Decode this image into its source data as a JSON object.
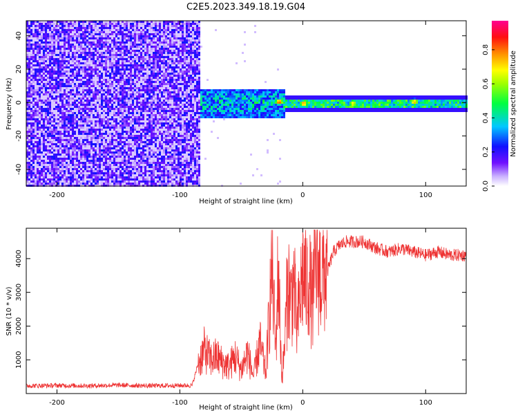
{
  "figure": {
    "title": "C2E5.2023.349.18.19.G04"
  },
  "chart_data": [
    {
      "type": "heatmap",
      "xlabel": "Height of straight line (km)",
      "ylabel": "Frequency (Hz)",
      "xlim": [
        -225,
        133
      ],
      "ylim": [
        -50,
        49
      ],
      "xticks": [
        -200,
        -100,
        0,
        100
      ],
      "yticks": [
        -40,
        -20,
        0,
        20,
        40
      ],
      "grid": false,
      "colorbar": {
        "label": "Normalized spectral amplitude",
        "range": [
          0.0,
          0.97
        ],
        "ticks": [
          "0.0",
          "0.2",
          "0.4",
          "0.6",
          "0.8"
        ],
        "colormap": "rainbow (white→purple→blue→cyan→green→yellow→orange→red→magenta)"
      },
      "regions": [
        {
          "x_range": [
            -225,
            -85
          ],
          "description_level": "broadband noise",
          "amplitude": [
            0.05,
            0.25
          ],
          "freq_range": [
            -50,
            49
          ]
        },
        {
          "x_range": [
            -85,
            -15
          ],
          "freq_center": 0,
          "freq_halfwidth": 9,
          "amplitude": [
            0.2,
            0.55
          ]
        },
        {
          "x_range": [
            -15,
            133
          ],
          "freq_center": 0,
          "freq_halfwidth": 3,
          "amplitude": [
            0.3,
            0.6
          ]
        }
      ],
      "peaks": [
        {
          "x": -20,
          "y": 1,
          "value": 0.9
        },
        {
          "x": 0,
          "y": 0,
          "value": 0.85
        },
        {
          "x": 40,
          "y": 0,
          "value": 0.75
        },
        {
          "x": 90,
          "y": 1,
          "value": 0.8
        }
      ]
    },
    {
      "type": "line",
      "xlabel": "Height of straight line (km)",
      "ylabel": "SNR (10 * v/v)",
      "xlim": [
        -225,
        133
      ],
      "ylim": [
        0,
        4900
      ],
      "xticks": [
        -200,
        -100,
        0,
        100
      ],
      "yticks": [
        1000,
        2000,
        3000,
        4000
      ],
      "grid": false,
      "series": [
        {
          "color": "#ee3333",
          "x": [
            -225,
            -200,
            -175,
            -150,
            -125,
            -100,
            -90,
            -85,
            -80,
            -75,
            -70,
            -65,
            -60,
            -55,
            -50,
            -45,
            -40,
            -35,
            -30,
            -27,
            -25,
            -22,
            -20,
            -17,
            -15,
            -12,
            -10,
            -7,
            -5,
            -2,
            0,
            3,
            5,
            8,
            10,
            15,
            20,
            25,
            30,
            35,
            40,
            50,
            60,
            70,
            80,
            90,
            100,
            110,
            120,
            133
          ],
          "y": [
            230,
            240,
            230,
            250,
            230,
            240,
            240,
            900,
            1300,
            1000,
            1100,
            900,
            800,
            1100,
            700,
            1200,
            500,
            1500,
            600,
            2500,
            3900,
            1200,
            3800,
            400,
            1300,
            3400,
            2700,
            3300,
            1800,
            2900,
            3600,
            3200,
            3400,
            2600,
            3800,
            3500,
            3600,
            4200,
            4400,
            4500,
            4500,
            4500,
            4300,
            4200,
            4300,
            4200,
            4100,
            4200,
            4100,
            4100
          ]
        }
      ]
    }
  ]
}
